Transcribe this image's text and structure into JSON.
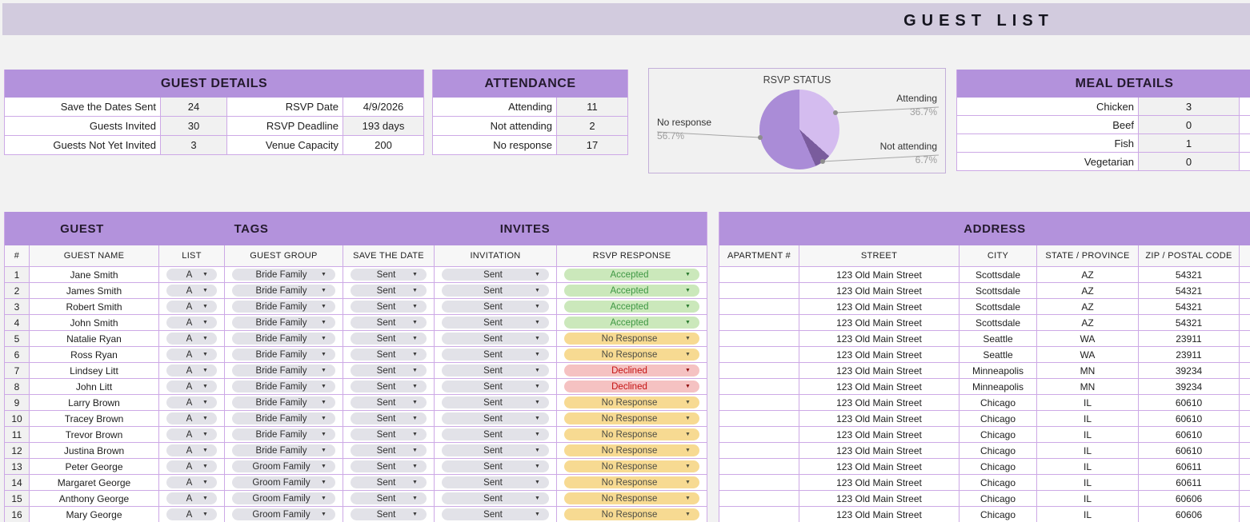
{
  "page": {
    "banner_title": "GUEST LIST"
  },
  "colors": {
    "header_purple": "#b392dc",
    "banner_lavender": "#d2cbde",
    "grid_purple": "#cda9e6",
    "computed_cell_bg": "#f1f1f1",
    "pill_gray_bg": "#e2e2e8",
    "accepted_bg": "#cbe8bb",
    "accepted_text": "#3e9743",
    "no_response_bg": "#f7da92",
    "no_response_text": "#4c4c44",
    "declined_bg": "#f5c2c2",
    "declined_text": "#c51212"
  },
  "guest_details": {
    "title": "GUEST DETAILS",
    "rows": [
      {
        "label_left": "Save the Dates Sent",
        "value_left": "24",
        "label_right": "RSVP Date",
        "value_right": "4/9/2026",
        "right_editable": true
      },
      {
        "label_left": "Guests Invited",
        "value_left": "30",
        "label_right": "RSVP Deadline",
        "value_right": "193 days",
        "right_editable": false
      },
      {
        "label_left": "Guests Not Yet Invited",
        "value_left": "3",
        "label_right": "Venue Capacity",
        "value_right": "200",
        "right_editable": true
      }
    ]
  },
  "attendance": {
    "title": "ATTENDANCE",
    "rows": [
      {
        "label": "Attending",
        "value": "11"
      },
      {
        "label": "Not attending",
        "value": "2"
      },
      {
        "label": "No response",
        "value": "17"
      }
    ]
  },
  "chart_data": {
    "type": "pie",
    "title": "RSVP STATUS",
    "labels": [
      "Attending",
      "Not attending",
      "No response"
    ],
    "values": [
      36.7,
      6.7,
      56.7
    ],
    "unit": "%",
    "colors": [
      "#d4bcef",
      "#7a5c9d",
      "#aa8cd7"
    ],
    "label_style": "external callouts with percent",
    "start_angle_deg": 0,
    "direction": "clockwise"
  },
  "meal_details": {
    "title": "MEAL DETAILS",
    "rows": [
      {
        "label": "Chicken",
        "value": "3"
      },
      {
        "label": "Beef",
        "value": "0"
      },
      {
        "label": "Fish",
        "value": "1"
      },
      {
        "label": "Vegetarian",
        "value": "0"
      }
    ]
  },
  "guest_table": {
    "group_headers": [
      "GUEST",
      "TAGS",
      "INVITES"
    ],
    "columns": [
      "#",
      "GUEST NAME",
      "LIST",
      "GUEST GROUP",
      "SAVE THE DATE",
      "INVITATION",
      "RSVP RESPONSE"
    ],
    "rows": [
      {
        "num": "1",
        "name": "Jane Smith",
        "list": "A",
        "group": "Bride Family",
        "save_the_date": "Sent",
        "invitation": "Sent",
        "rsvp": "Accepted",
        "rsvp_state": "accepted"
      },
      {
        "num": "2",
        "name": "James Smith",
        "list": "A",
        "group": "Bride Family",
        "save_the_date": "Sent",
        "invitation": "Sent",
        "rsvp": "Accepted",
        "rsvp_state": "accepted"
      },
      {
        "num": "3",
        "name": "Robert Smith",
        "list": "A",
        "group": "Bride Family",
        "save_the_date": "Sent",
        "invitation": "Sent",
        "rsvp": "Accepted",
        "rsvp_state": "accepted"
      },
      {
        "num": "4",
        "name": "John Smith",
        "list": "A",
        "group": "Bride Family",
        "save_the_date": "Sent",
        "invitation": "Sent",
        "rsvp": "Accepted",
        "rsvp_state": "accepted"
      },
      {
        "num": "5",
        "name": "Natalie Ryan",
        "list": "A",
        "group": "Bride Family",
        "save_the_date": "Sent",
        "invitation": "Sent",
        "rsvp": "No Response",
        "rsvp_state": "no_response"
      },
      {
        "num": "6",
        "name": "Ross Ryan",
        "list": "A",
        "group": "Bride Family",
        "save_the_date": "Sent",
        "invitation": "Sent",
        "rsvp": "No Response",
        "rsvp_state": "no_response"
      },
      {
        "num": "7",
        "name": "Lindsey Litt",
        "list": "A",
        "group": "Bride Family",
        "save_the_date": "Sent",
        "invitation": "Sent",
        "rsvp": "Declined",
        "rsvp_state": "declined"
      },
      {
        "num": "8",
        "name": "John Litt",
        "list": "A",
        "group": "Bride Family",
        "save_the_date": "Sent",
        "invitation": "Sent",
        "rsvp": "Declined",
        "rsvp_state": "declined"
      },
      {
        "num": "9",
        "name": "Larry Brown",
        "list": "A",
        "group": "Bride Family",
        "save_the_date": "Sent",
        "invitation": "Sent",
        "rsvp": "No Response",
        "rsvp_state": "no_response"
      },
      {
        "num": "10",
        "name": "Tracey Brown",
        "list": "A",
        "group": "Bride Family",
        "save_the_date": "Sent",
        "invitation": "Sent",
        "rsvp": "No Response",
        "rsvp_state": "no_response"
      },
      {
        "num": "11",
        "name": "Trevor Brown",
        "list": "A",
        "group": "Bride Family",
        "save_the_date": "Sent",
        "invitation": "Sent",
        "rsvp": "No Response",
        "rsvp_state": "no_response"
      },
      {
        "num": "12",
        "name": "Justina Brown",
        "list": "A",
        "group": "Bride Family",
        "save_the_date": "Sent",
        "invitation": "Sent",
        "rsvp": "No Response",
        "rsvp_state": "no_response"
      },
      {
        "num": "13",
        "name": "Peter George",
        "list": "A",
        "group": "Groom Family",
        "save_the_date": "Sent",
        "invitation": "Sent",
        "rsvp": "No Response",
        "rsvp_state": "no_response"
      },
      {
        "num": "14",
        "name": "Margaret George",
        "list": "A",
        "group": "Groom Family",
        "save_the_date": "Sent",
        "invitation": "Sent",
        "rsvp": "No Response",
        "rsvp_state": "no_response"
      },
      {
        "num": "15",
        "name": "Anthony George",
        "list": "A",
        "group": "Groom Family",
        "save_the_date": "Sent",
        "invitation": "Sent",
        "rsvp": "No Response",
        "rsvp_state": "no_response"
      },
      {
        "num": "16",
        "name": "Mary George",
        "list": "A",
        "group": "Groom Family",
        "save_the_date": "Sent",
        "invitation": "Sent",
        "rsvp": "No Response",
        "rsvp_state": "no_response"
      }
    ]
  },
  "address_table": {
    "title": "ADDRESS",
    "columns": [
      "APARTMENT #",
      "STREET",
      "CITY",
      "STATE / PROVINCE",
      "ZIP / POSTAL CODE",
      "C"
    ],
    "rows": [
      {
        "apartment": "",
        "street": "123 Old Main Street",
        "city": "Scottsdale",
        "state": "AZ",
        "zip": "54321"
      },
      {
        "apartment": "",
        "street": "123 Old Main Street",
        "city": "Scottsdale",
        "state": "AZ",
        "zip": "54321"
      },
      {
        "apartment": "",
        "street": "123 Old Main Street",
        "city": "Scottsdale",
        "state": "AZ",
        "zip": "54321"
      },
      {
        "apartment": "",
        "street": "123 Old Main Street",
        "city": "Scottsdale",
        "state": "AZ",
        "zip": "54321"
      },
      {
        "apartment": "",
        "street": "123 Old Main Street",
        "city": "Seattle",
        "state": "WA",
        "zip": "23911"
      },
      {
        "apartment": "",
        "street": "123 Old Main Street",
        "city": "Seattle",
        "state": "WA",
        "zip": "23911"
      },
      {
        "apartment": "",
        "street": "123 Old Main Street",
        "city": "Minneapolis",
        "state": "MN",
        "zip": "39234"
      },
      {
        "apartment": "",
        "street": "123 Old Main Street",
        "city": "Minneapolis",
        "state": "MN",
        "zip": "39234"
      },
      {
        "apartment": "",
        "street": "123 Old Main Street",
        "city": "Chicago",
        "state": "IL",
        "zip": "60610"
      },
      {
        "apartment": "",
        "street": "123 Old Main Street",
        "city": "Chicago",
        "state": "IL",
        "zip": "60610"
      },
      {
        "apartment": "",
        "street": "123 Old Main Street",
        "city": "Chicago",
        "state": "IL",
        "zip": "60610"
      },
      {
        "apartment": "",
        "street": "123 Old Main Street",
        "city": "Chicago",
        "state": "IL",
        "zip": "60610"
      },
      {
        "apartment": "",
        "street": "123 Old Main Street",
        "city": "Chicago",
        "state": "IL",
        "zip": "60611"
      },
      {
        "apartment": "",
        "street": "123 Old Main Street",
        "city": "Chicago",
        "state": "IL",
        "zip": "60611"
      },
      {
        "apartment": "",
        "street": "123 Old Main Street",
        "city": "Chicago",
        "state": "IL",
        "zip": "60606"
      },
      {
        "apartment": "",
        "street": "123 Old Main Street",
        "city": "Chicago",
        "state": "IL",
        "zip": "60606"
      }
    ]
  }
}
